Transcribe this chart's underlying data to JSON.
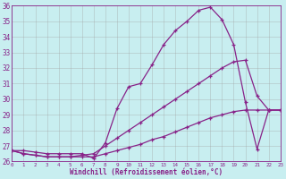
{
  "xlabel": "Windchill (Refroidissement éolien,°C)",
  "xlim": [
    0,
    23
  ],
  "ylim": [
    26,
    36
  ],
  "yticks": [
    26,
    27,
    28,
    29,
    30,
    31,
    32,
    33,
    34,
    35,
    36
  ],
  "xticks": [
    0,
    1,
    2,
    3,
    4,
    5,
    6,
    7,
    8,
    9,
    10,
    11,
    12,
    13,
    14,
    15,
    16,
    17,
    18,
    19,
    20,
    21,
    22,
    23
  ],
  "bg_color": "#c8eef0",
  "line_color": "#882288",
  "grid_color": "#a0a0a0",
  "lines": [
    {
      "x": [
        0,
        1,
        2,
        3,
        4,
        5,
        6,
        7,
        8,
        9,
        10,
        11,
        12,
        13,
        14,
        15,
        16,
        17,
        18,
        19,
        20,
        21,
        22,
        23
      ],
      "y": [
        26.7,
        26.7,
        26.6,
        26.5,
        26.5,
        26.5,
        26.5,
        26.2,
        27.2,
        29.4,
        30.8,
        31.0,
        32.2,
        33.5,
        34.4,
        35.0,
        35.7,
        35.9,
        35.1,
        33.5,
        29.8,
        26.8,
        29.3,
        29.3
      ]
    },
    {
      "x": [
        0,
        1,
        2,
        3,
        4,
        5,
        6,
        7,
        8,
        9,
        10,
        11,
        12,
        13,
        14,
        15,
        16,
        17,
        18,
        19,
        20,
        21,
        22,
        23
      ],
      "y": [
        26.7,
        26.5,
        26.4,
        26.3,
        26.3,
        26.3,
        26.4,
        26.5,
        27.0,
        27.5,
        28.0,
        28.5,
        29.0,
        29.5,
        30.0,
        30.5,
        31.0,
        31.5,
        32.0,
        32.4,
        32.5,
        30.2,
        29.3,
        29.3
      ]
    },
    {
      "x": [
        0,
        1,
        2,
        3,
        4,
        5,
        6,
        7,
        8,
        9,
        10,
        11,
        12,
        13,
        14,
        15,
        16,
        17,
        18,
        19,
        20,
        21,
        22,
        23
      ],
      "y": [
        26.7,
        26.5,
        26.4,
        26.3,
        26.3,
        26.3,
        26.3,
        26.3,
        26.5,
        26.7,
        26.9,
        27.1,
        27.4,
        27.6,
        27.9,
        28.2,
        28.5,
        28.8,
        29.0,
        29.2,
        29.3,
        29.3,
        29.3,
        29.3
      ]
    }
  ]
}
